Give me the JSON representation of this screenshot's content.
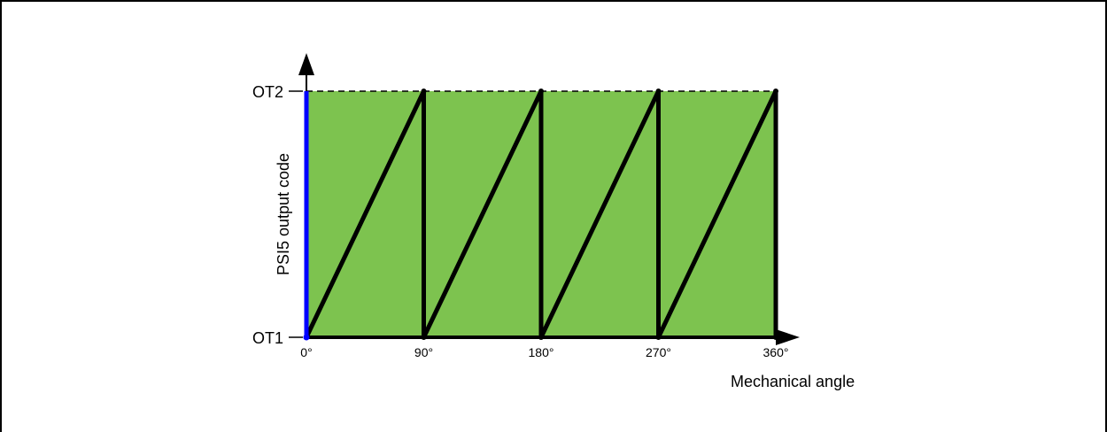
{
  "chart_data": {
    "type": "line",
    "xlabel": "Mechanical angle",
    "ylabel": "PSI5 output code",
    "x_ticks": [
      "0°",
      "90°",
      "180°",
      "270°",
      "360°"
    ],
    "y_ticks": [
      "OT1",
      "OT2"
    ],
    "xlim": [
      0,
      360
    ],
    "ylim": [
      "OT1",
      "OT2"
    ],
    "series": [
      {
        "x": [
          0,
          90,
          90,
          180,
          180,
          270,
          270,
          360,
          360
        ],
        "y": [
          "OT1",
          "OT2",
          "OT1",
          "OT2",
          "OT1",
          "OT2",
          "OT1",
          "OT2",
          "OT1"
        ]
      }
    ],
    "grid": false,
    "colors": {
      "fill": "#7dc34f",
      "line": "#000000",
      "y_axis_highlight": "#0000ff"
    }
  }
}
